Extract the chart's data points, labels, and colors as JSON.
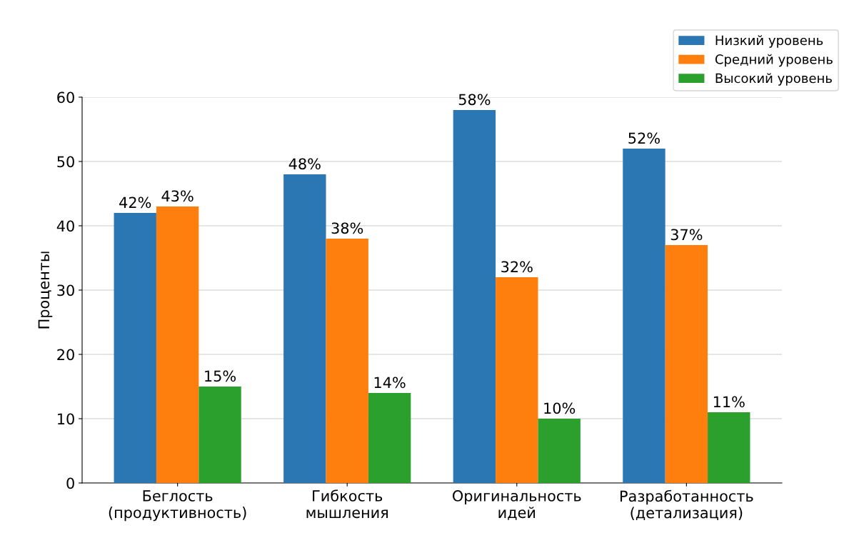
{
  "chart_data": {
    "type": "bar",
    "ylabel": "Проценты",
    "categories": [
      "Беглость\n(продуктивность)",
      "Гибкость\nмышления",
      "Оригинальность\nидей",
      "Разработанность\n(детализация)"
    ],
    "series": [
      {
        "name": "Низкий уровень",
        "color": "#2a77b4",
        "values": [
          42,
          48,
          58,
          52
        ],
        "value_labels": [
          "42%",
          "48%",
          "58%",
          "52%"
        ]
      },
      {
        "name": "Средний уровень",
        "color": "#ff7f0e",
        "values": [
          43,
          38,
          32,
          37
        ],
        "value_labels": [
          "43%",
          "38%",
          "32%",
          "37%"
        ]
      },
      {
        "name": "Высокий уровень",
        "color": "#2ca02c",
        "values": [
          15,
          14,
          10,
          11
        ],
        "value_labels": [
          "15%",
          "14%",
          "10%",
          "11%"
        ]
      }
    ],
    "ylim": [
      0,
      60
    ],
    "yticks": [
      0,
      10,
      20,
      30,
      40,
      50,
      60
    ],
    "grid": "y",
    "legend": "top right"
  }
}
